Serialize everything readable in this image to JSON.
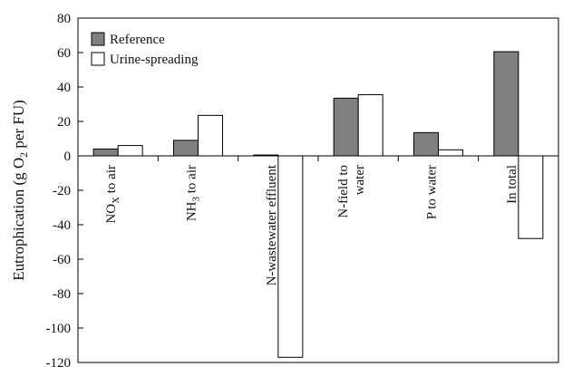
{
  "chart_data": {
    "type": "bar",
    "ylabel": "Eutrophication (g O₂ per FU)",
    "ylabel_parts": {
      "before": "Eutrophication (g O",
      "sub": "2",
      "after": " per FU)"
    },
    "ylim": [
      -120,
      80
    ],
    "yticks": [
      80,
      60,
      40,
      20,
      0,
      -20,
      -40,
      -60,
      -80,
      -100,
      -120
    ],
    "legend_position": "top-left",
    "categories": [
      "NOX to air",
      "NH3 to air",
      "N-wastewater effluent",
      "N-field to water",
      "P to water",
      "In total"
    ],
    "category_labels": [
      {
        "lines": [
          {
            "main": "NO",
            "sub": "X",
            "rest": " to air"
          }
        ]
      },
      {
        "lines": [
          {
            "main": "NH",
            "sub": "3",
            "rest": " to air"
          }
        ]
      },
      {
        "lines": [
          {
            "main": "N-wastewater effluent",
            "sub": "",
            "rest": ""
          }
        ]
      },
      {
        "lines": [
          {
            "main": "N-field to",
            "sub": "",
            "rest": ""
          },
          {
            "main": "water",
            "sub": "",
            "rest": ""
          }
        ]
      },
      {
        "lines": [
          {
            "main": "P to water",
            "sub": "",
            "rest": ""
          }
        ]
      },
      {
        "lines": [
          {
            "main": "In total",
            "sub": "",
            "rest": ""
          }
        ]
      }
    ],
    "series": [
      {
        "name": "Reference",
        "color": "#808080",
        "values": [
          4,
          9,
          0.5,
          33.5,
          13.5,
          60.5
        ]
      },
      {
        "name": "Urine-spreading",
        "color": "#ffffff",
        "values": [
          6,
          23.5,
          -117,
          35.5,
          3.5,
          -48
        ]
      }
    ]
  }
}
